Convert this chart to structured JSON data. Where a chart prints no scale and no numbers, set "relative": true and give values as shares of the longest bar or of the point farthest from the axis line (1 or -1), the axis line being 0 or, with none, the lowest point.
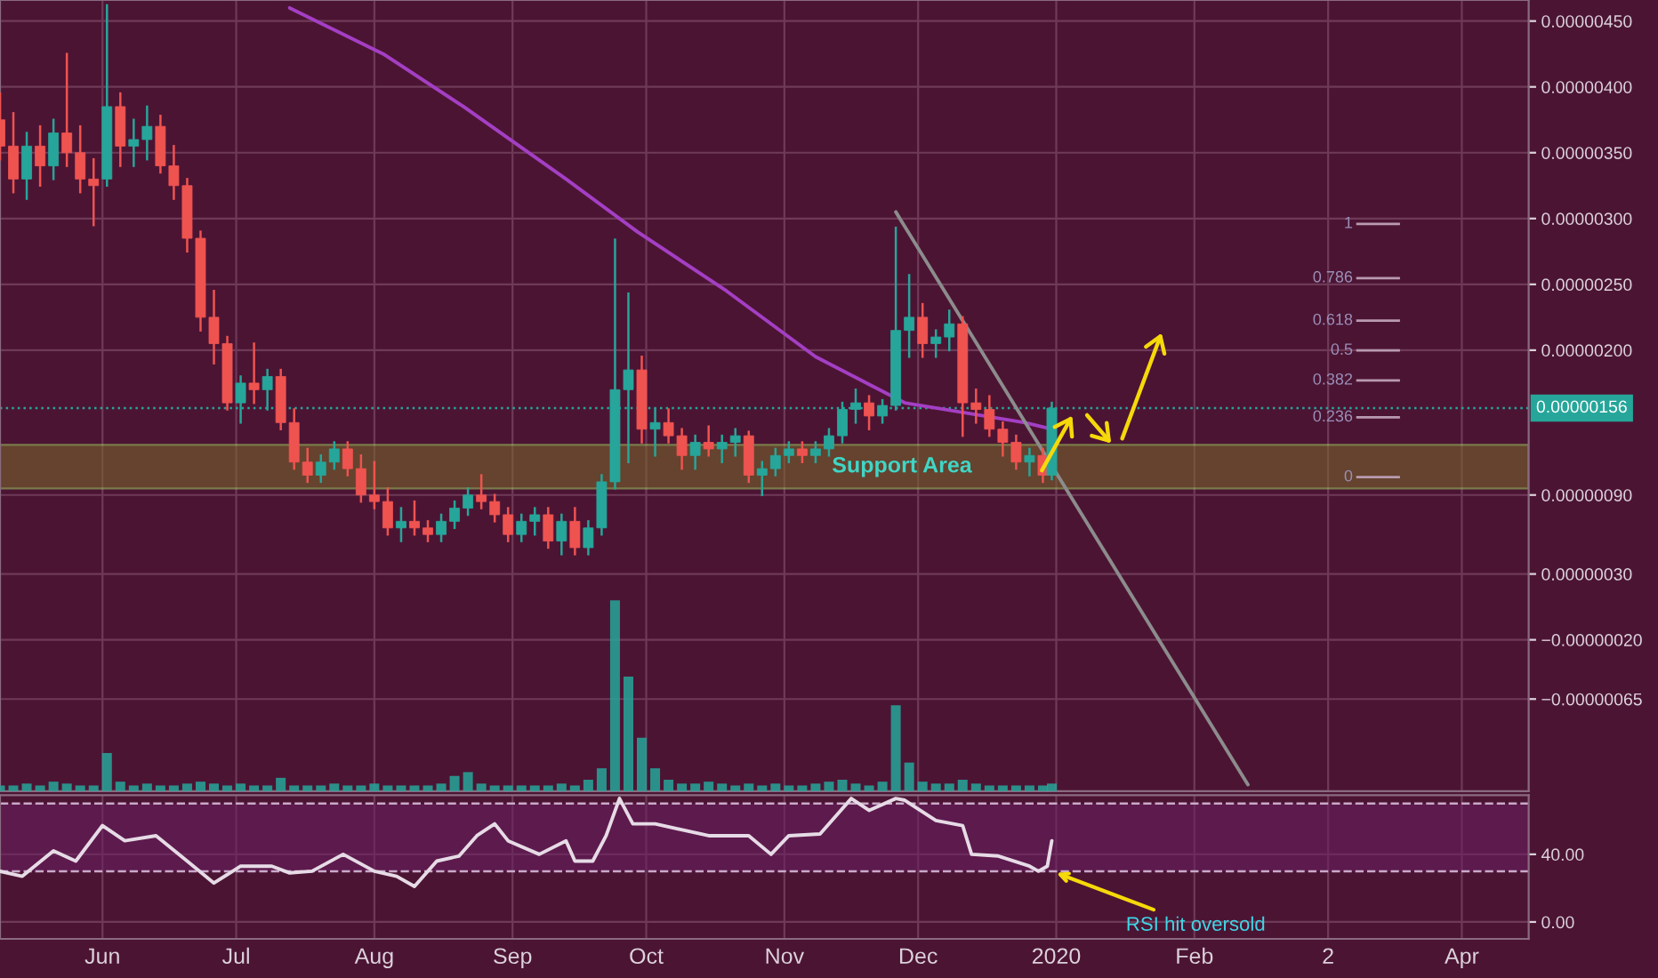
{
  "chart_data": [
    {
      "type": "candlestick",
      "x": [
        "2019-05-09",
        "2019-05-12",
        "2019-05-15",
        "2019-05-18",
        "2019-05-21",
        "2019-05-24",
        "2019-05-27",
        "2019-05-30",
        "2019-06-02",
        "2019-06-05",
        "2019-06-08",
        "2019-06-11",
        "2019-06-14",
        "2019-06-17",
        "2019-06-20",
        "2019-06-23",
        "2019-06-26",
        "2019-06-29",
        "2019-07-02",
        "2019-07-05",
        "2019-07-08",
        "2019-07-11",
        "2019-07-14",
        "2019-07-17",
        "2019-07-20",
        "2019-07-23",
        "2019-07-26",
        "2019-07-29",
        "2019-08-01",
        "2019-08-04",
        "2019-08-07",
        "2019-08-10",
        "2019-08-13",
        "2019-08-16",
        "2019-08-19",
        "2019-08-22",
        "2019-08-25",
        "2019-08-28",
        "2019-08-31",
        "2019-09-03",
        "2019-09-06",
        "2019-09-09",
        "2019-09-12",
        "2019-09-15",
        "2019-09-18",
        "2019-09-21",
        "2019-09-24",
        "2019-09-27",
        "2019-09-30",
        "2019-10-03",
        "2019-10-06",
        "2019-10-09",
        "2019-10-12",
        "2019-10-15",
        "2019-10-18",
        "2019-10-21",
        "2019-10-24",
        "2019-10-27",
        "2019-10-30",
        "2019-11-02",
        "2019-11-05",
        "2019-11-08",
        "2019-11-11",
        "2019-11-14",
        "2019-11-17",
        "2019-11-20",
        "2019-11-23",
        "2019-11-26",
        "2019-11-29",
        "2019-12-02",
        "2019-12-05",
        "2019-12-08",
        "2019-12-11",
        "2019-12-14",
        "2019-12-17",
        "2019-12-20",
        "2019-12-23",
        "2019-12-26",
        "2019-12-29",
        "2019-12-31"
      ],
      "ohlc": [
        [
          3.75e-06,
          3.95e-06,
          3.45e-06,
          3.55e-06
        ],
        [
          3.55e-06,
          3.8e-06,
          3.2e-06,
          3.3e-06
        ],
        [
          3.3e-06,
          3.65e-06,
          3.15e-06,
          3.55e-06
        ],
        [
          3.55e-06,
          3.7e-06,
          3.25e-06,
          3.4e-06
        ],
        [
          3.4e-06,
          3.75e-06,
          3.3e-06,
          3.65e-06
        ],
        [
          3.65e-06,
          4.25e-06,
          3.4e-06,
          3.5e-06
        ],
        [
          3.5e-06,
          3.7e-06,
          3.2e-06,
          3.3e-06
        ],
        [
          3.3e-06,
          3.45e-06,
          2.95e-06,
          3.25e-06
        ],
        [
          3.3e-06,
          4.62e-06,
          3.25e-06,
          3.85e-06
        ],
        [
          3.85e-06,
          3.95e-06,
          3.4e-06,
          3.55e-06
        ],
        [
          3.55e-06,
          3.75e-06,
          3.4e-06,
          3.6e-06
        ],
        [
          3.6e-06,
          3.85e-06,
          3.45e-06,
          3.7e-06
        ],
        [
          3.7e-06,
          3.78e-06,
          3.35e-06,
          3.4e-06
        ],
        [
          3.4e-06,
          3.55e-06,
          3.15e-06,
          3.25e-06
        ],
        [
          3.25e-06,
          3.3e-06,
          2.75e-06,
          2.85e-06
        ],
        [
          2.85e-06,
          2.9e-06,
          2.15e-06,
          2.25e-06
        ],
        [
          2.25e-06,
          2.45e-06,
          1.9e-06,
          2.05e-06
        ],
        [
          2.05e-06,
          2.1e-06,
          1.55e-06,
          1.6e-06
        ],
        [
          1.6e-06,
          1.8e-06,
          1.45e-06,
          1.75e-06
        ],
        [
          1.75e-06,
          2.05e-06,
          1.6e-06,
          1.7e-06
        ],
        [
          1.7e-06,
          1.85e-06,
          1.55e-06,
          1.8e-06
        ],
        [
          1.8e-06,
          1.85e-06,
          1.4e-06,
          1.45e-06
        ],
        [
          1.45e-06,
          1.55e-06,
          1.1e-06,
          1.15e-06
        ],
        [
          1.15e-06,
          1.25e-06,
          1e-06,
          1.05e-06
        ],
        [
          1.05e-06,
          1.2e-06,
          1e-06,
          1.15e-06
        ],
        [
          1.15e-06,
          1.3e-06,
          1.1e-06,
          1.25e-06
        ],
        [
          1.25e-06,
          1.3e-06,
          1.05e-06,
          1.1e-06
        ],
        [
          1.1e-06,
          1.2e-06,
          8.5e-07,
          9e-07
        ],
        [
          9e-07,
          1.15e-06,
          8e-07,
          8.5e-07
        ],
        [
          8.5e-07,
          9.5e-07,
          6e-07,
          6.5e-07
        ],
        [
          6.5e-07,
          8e-07,
          5.5e-07,
          7e-07
        ],
        [
          7e-07,
          8.5e-07,
          6e-07,
          6.5e-07
        ],
        [
          6.5e-07,
          7e-07,
          5.5e-07,
          6e-07
        ],
        [
          6e-07,
          7.5e-07,
          5.5e-07,
          7e-07
        ],
        [
          7e-07,
          8.5e-07,
          6.5e-07,
          8e-07
        ],
        [
          8e-07,
          9.5e-07,
          7.5e-07,
          9e-07
        ],
        [
          9e-07,
          1.05e-06,
          8e-07,
          8.5e-07
        ],
        [
          8.5e-07,
          9e-07,
          7e-07,
          7.5e-07
        ],
        [
          7.5e-07,
          8e-07,
          5.5e-07,
          6e-07
        ],
        [
          6e-07,
          7.5e-07,
          5.5e-07,
          7e-07
        ],
        [
          7e-07,
          8e-07,
          6e-07,
          7.5e-07
        ],
        [
          7.5e-07,
          8e-07,
          5e-07,
          5.5e-07
        ],
        [
          5.5e-07,
          7.5e-07,
          4.5e-07,
          7e-07
        ],
        [
          7e-07,
          8e-07,
          4.5e-07,
          5e-07
        ],
        [
          5e-07,
          7e-07,
          4.5e-07,
          6.5e-07
        ],
        [
          6.5e-07,
          1.05e-06,
          6e-07,
          1e-06
        ],
        [
          1e-06,
          2.84e-06,
          9.5e-07,
          1.7e-06
        ],
        [
          1.7e-06,
          2.43e-06,
          1.15e-06,
          1.85e-06
        ],
        [
          1.85e-06,
          1.95e-06,
          1.3e-06,
          1.4e-06
        ],
        [
          1.4e-06,
          1.55e-06,
          1.2e-06,
          1.45e-06
        ],
        [
          1.45e-06,
          1.55e-06,
          1.3e-06,
          1.35e-06
        ],
        [
          1.35e-06,
          1.4e-06,
          1.1e-06,
          1.2e-06
        ],
        [
          1.2e-06,
          1.35e-06,
          1.1e-06,
          1.3e-06
        ],
        [
          1.3e-06,
          1.42e-06,
          1.2e-06,
          1.25e-06
        ],
        [
          1.25e-06,
          1.35e-06,
          1.15e-06,
          1.3e-06
        ],
        [
          1.3e-06,
          1.4e-06,
          1.2e-06,
          1.35e-06
        ],
        [
          1.35e-06,
          1.38e-06,
          1e-06,
          1.05e-06
        ],
        [
          1.05e-06,
          1.15e-06,
          9e-07,
          1.1e-06
        ],
        [
          1.1e-06,
          1.25e-06,
          1.05e-06,
          1.2e-06
        ],
        [
          1.2e-06,
          1.3e-06,
          1.15e-06,
          1.25e-06
        ],
        [
          1.25e-06,
          1.3e-06,
          1.15e-06,
          1.2e-06
        ],
        [
          1.2e-06,
          1.3e-06,
          1.15e-06,
          1.25e-06
        ],
        [
          1.25e-06,
          1.4e-06,
          1.2e-06,
          1.35e-06
        ],
        [
          1.35e-06,
          1.6e-06,
          1.3e-06,
          1.55e-06
        ],
        [
          1.55e-06,
          1.7e-06,
          1.45e-06,
          1.6e-06
        ],
        [
          1.6e-06,
          1.65e-06,
          1.4e-06,
          1.5e-06
        ],
        [
          1.5e-06,
          1.62e-06,
          1.45e-06,
          1.58e-06
        ],
        [
          1.58e-06,
          2.93e-06,
          1.55e-06,
          2.15e-06
        ],
        [
          2.15e-06,
          2.57e-06,
          1.95e-06,
          2.25e-06
        ],
        [
          2.25e-06,
          2.35e-06,
          1.95e-06,
          2.05e-06
        ],
        [
          2.05e-06,
          2.15e-06,
          1.95e-06,
          2.1e-06
        ],
        [
          2.1e-06,
          2.3e-06,
          2e-06,
          2.2e-06
        ],
        [
          2.2e-06,
          2.25e-06,
          1.35e-06,
          1.6e-06
        ],
        [
          1.6e-06,
          1.7e-06,
          1.45e-06,
          1.55e-06
        ],
        [
          1.55e-06,
          1.65e-06,
          1.35e-06,
          1.4e-06
        ],
        [
          1.4e-06,
          1.45e-06,
          1.2e-06,
          1.3e-06
        ],
        [
          1.3e-06,
          1.35e-06,
          1.1e-06,
          1.15e-06
        ],
        [
          1.15e-06,
          1.25e-06,
          1.05e-06,
          1.2e-06
        ],
        [
          1.2e-06,
          1.25e-06,
          1e-06,
          1.05e-06
        ],
        [
          1.05e-06,
          1.6e-06,
          1.02e-06,
          1.56e-06
        ]
      ],
      "series": [
        {
          "type": "line",
          "color": "#a43fc4",
          "x": [
            "2019-07-13",
            "2019-08-03",
            "2019-08-21",
            "2019-09-13",
            "2019-09-29",
            "2019-10-19",
            "2019-11-08",
            "2019-11-28",
            "2019-12-25",
            "2019-12-31"
          ],
          "values": [
            4.6e-06,
            4.25e-06,
            3.85e-06,
            3.3e-06,
            2.9e-06,
            2.45e-06,
            1.95e-06,
            1.6e-06,
            1.45e-06,
            1.4e-06
          ]
        },
        {
          "type": "line",
          "color": "#8c8c8c",
          "x": [
            "2019-11-26",
            "2020-02-13"
          ],
          "values": [
            3.05e-06,
            -1.3e-06
          ]
        }
      ],
      "xlim": [
        "2019-05-09",
        "2020-04-16"
      ],
      "xticks": [
        {
          "value": "2019-06-01",
          "label": null
        },
        {
          "value": "2019-07-01",
          "label": null
        },
        {
          "value": "2019-08-01",
          "label": null
        },
        {
          "value": "2019-09-01",
          "label": null
        },
        {
          "value": "2019-10-01",
          "label": null
        },
        {
          "value": "2019-11-01",
          "label": null
        },
        {
          "value": "2019-12-01",
          "label": null
        },
        {
          "value": "2020-01-01",
          "label": null
        },
        {
          "value": "2020-02-01",
          "label": null
        },
        {
          "value": "2020-03-02",
          "label": null
        },
        {
          "value": "2020-04-01",
          "label": null
        }
      ],
      "ylim": [
        -1.35e-06,
        4.66e-06
      ],
      "yticks": [
        {
          "value": 4.5e-06,
          "label": "0.00000450"
        },
        {
          "value": 4e-06,
          "label": "0.00000400"
        },
        {
          "value": 3.5e-06,
          "label": "0.00000350"
        },
        {
          "value": 3e-06,
          "label": "0.00000300"
        },
        {
          "value": 2.5e-06,
          "label": "0.00000250"
        },
        {
          "value": 2e-06,
          "label": "0.00000200"
        },
        {
          "value": 9e-07,
          "label": "0.00000090"
        },
        {
          "value": 3e-07,
          "label": "0.00000030"
        },
        {
          "value": -2e-07,
          "label": "−0.00000020"
        },
        {
          "value": -6.5e-07,
          "label": "−0.00000065"
        }
      ],
      "tick_labels": "y",
      "grid": true,
      "ref_lines": [
        {
          "axis": "y",
          "value": 1.56e-06,
          "label": "0.00000156",
          "color": "#26a69a",
          "line_style": "dotted"
        }
      ],
      "bands": [
        {
          "axis": "y",
          "from": 9.5e-07,
          "to": 1.28e-06,
          "label": "Support Area",
          "color": "#7a6a2a"
        }
      ],
      "annotations": [
        "1",
        "0.786",
        "0.618",
        "0.5",
        "0.382",
        "0.236",
        "0"
      ]
    },
    {
      "type": "bar",
      "relative": true,
      "color": "#26a69a",
      "tick_labels": false,
      "x": [
        "2019-05-09",
        "2019-05-12",
        "2019-05-15",
        "2019-05-18",
        "2019-05-21",
        "2019-05-24",
        "2019-05-27",
        "2019-05-30",
        "2019-06-02",
        "2019-06-05",
        "2019-06-08",
        "2019-06-11",
        "2019-06-14",
        "2019-06-17",
        "2019-06-20",
        "2019-06-23",
        "2019-06-26",
        "2019-06-29",
        "2019-07-02",
        "2019-07-05",
        "2019-07-08",
        "2019-07-11",
        "2019-07-14",
        "2019-07-17",
        "2019-07-20",
        "2019-07-23",
        "2019-07-26",
        "2019-07-29",
        "2019-08-01",
        "2019-08-04",
        "2019-08-07",
        "2019-08-10",
        "2019-08-13",
        "2019-08-16",
        "2019-08-19",
        "2019-08-22",
        "2019-08-25",
        "2019-08-28",
        "2019-08-31",
        "2019-09-03",
        "2019-09-06",
        "2019-09-09",
        "2019-09-12",
        "2019-09-15",
        "2019-09-18",
        "2019-09-21",
        "2019-09-24",
        "2019-09-27",
        "2019-09-30",
        "2019-10-03",
        "2019-10-06",
        "2019-10-09",
        "2019-10-12",
        "2019-10-15",
        "2019-10-18",
        "2019-10-21",
        "2019-10-24",
        "2019-10-27",
        "2019-10-30",
        "2019-11-02",
        "2019-11-05",
        "2019-11-08",
        "2019-11-11",
        "2019-11-14",
        "2019-11-17",
        "2019-11-20",
        "2019-11-23",
        "2019-11-26",
        "2019-11-29",
        "2019-12-02",
        "2019-12-05",
        "2019-12-08",
        "2019-12-11",
        "2019-12-14",
        "2019-12-17",
        "2019-12-20",
        "2019-12-23",
        "2019-12-26",
        "2019-12-29",
        "2019-12-31"
      ],
      "values": [
        0.03,
        0.03,
        0.04,
        0.03,
        0.05,
        0.04,
        0.03,
        0.03,
        0.2,
        0.05,
        0.03,
        0.04,
        0.03,
        0.03,
        0.04,
        0.05,
        0.04,
        0.03,
        0.04,
        0.03,
        0.03,
        0.07,
        0.03,
        0.03,
        0.03,
        0.04,
        0.03,
        0.03,
        0.04,
        0.03,
        0.03,
        0.03,
        0.03,
        0.04,
        0.08,
        0.1,
        0.04,
        0.03,
        0.03,
        0.03,
        0.03,
        0.03,
        0.04,
        0.03,
        0.06,
        0.12,
        1.0,
        0.6,
        0.28,
        0.12,
        0.06,
        0.04,
        0.04,
        0.05,
        0.04,
        0.03,
        0.04,
        0.03,
        0.04,
        0.03,
        0.03,
        0.04,
        0.05,
        0.06,
        0.04,
        0.03,
        0.05,
        0.45,
        0.15,
        0.05,
        0.04,
        0.04,
        0.06,
        0.04,
        0.03,
        0.03,
        0.03,
        0.03,
        0.03,
        0.04
      ],
      "xlim": [
        "2019-05-09",
        "2020-04-16"
      ]
    },
    {
      "type": "line",
      "color": "#e6dbe6",
      "x": [
        "2019-05-09",
        "2019-05-14",
        "2019-05-21",
        "2019-05-26",
        "2019-06-01",
        "2019-06-06",
        "2019-06-13",
        "2019-06-20",
        "2019-06-26",
        "2019-07-02",
        "2019-07-09",
        "2019-07-13",
        "2019-07-18",
        "2019-07-25",
        "2019-08-01",
        "2019-08-06",
        "2019-08-10",
        "2019-08-15",
        "2019-08-20",
        "2019-08-24",
        "2019-08-28",
        "2019-08-31",
        "2019-09-07",
        "2019-09-13",
        "2019-09-15",
        "2019-09-19",
        "2019-09-22",
        "2019-09-25",
        "2019-09-28",
        "2019-10-03",
        "2019-10-15",
        "2019-10-24",
        "2019-10-29",
        "2019-11-02",
        "2019-11-09",
        "2019-11-13",
        "2019-11-16",
        "2019-11-20",
        "2019-11-26",
        "2019-11-28",
        "2019-12-05",
        "2019-12-11",
        "2019-12-13",
        "2019-12-19",
        "2019-12-26",
        "2019-12-28",
        "2019-12-30",
        "2019-12-31"
      ],
      "values": [
        30,
        27,
        42,
        36,
        57,
        48,
        51,
        36,
        23,
        33,
        33,
        29,
        30,
        40,
        30,
        27,
        21,
        36,
        39,
        51,
        58,
        48,
        40,
        48,
        36,
        36,
        51,
        73,
        58,
        58,
        51,
        51,
        40,
        51,
        52,
        64,
        73,
        66,
        73,
        72,
        60,
        57,
        40,
        39,
        33,
        30,
        33,
        48
      ],
      "xlim": [
        "2019-05-09",
        "2020-04-16"
      ],
      "xticks": [
        {
          "value": "2019-06-01",
          "label": "Jun"
        },
        {
          "value": "2019-07-01",
          "label": "Jul"
        },
        {
          "value": "2019-08-01",
          "label": "Aug"
        },
        {
          "value": "2019-09-01",
          "label": "Sep"
        },
        {
          "value": "2019-10-01",
          "label": "Oct"
        },
        {
          "value": "2019-11-01",
          "label": "Nov"
        },
        {
          "value": "2019-12-01",
          "label": "Dec"
        },
        {
          "value": "2020-01-01",
          "label": "2020"
        },
        {
          "value": "2020-02-01",
          "label": "Feb"
        },
        {
          "value": "2020-03-02",
          "label": "2"
        },
        {
          "value": "2020-04-01",
          "label": "Apr"
        }
      ],
      "ylim": [
        -10,
        75
      ],
      "yticks": [
        {
          "value": 40,
          "label": "40.00"
        },
        {
          "value": 0,
          "label": "0.00"
        }
      ],
      "grid": true,
      "ref_lines": [
        {
          "axis": "y",
          "value": 70,
          "color": "#c9a9c9",
          "line_style": "dashed"
        },
        {
          "axis": "y",
          "value": 30,
          "color": "#c9a9c9",
          "line_style": "dashed"
        }
      ],
      "bands": [
        {
          "axis": "y",
          "from": 30,
          "to": 70,
          "color": "#6b1f63"
        }
      ],
      "annotations": [
        {
          "text": "RSI hit oversold",
          "x": "2019-12-31",
          "y": 30
        }
      ]
    }
  ]
}
